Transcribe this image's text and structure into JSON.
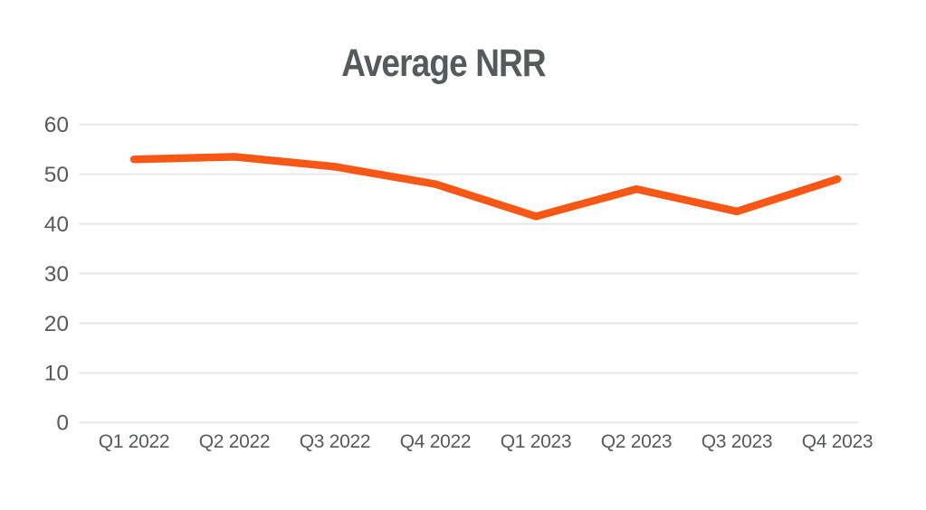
{
  "chart_data": {
    "type": "line",
    "title": "Average NRR",
    "categories": [
      "Q1 2022",
      "Q2 2022",
      "Q3 2022",
      "Q4 2022",
      "Q1 2023",
      "Q2 2023",
      "Q3 2023",
      "Q4 2023"
    ],
    "series": [
      {
        "name": "Average NRR",
        "values": [
          53,
          53.5,
          51.5,
          48,
          41.5,
          47,
          42.5,
          49
        ],
        "color": "#F95716"
      }
    ],
    "xlabel": "",
    "ylabel": "",
    "ylim": [
      0,
      60
    ],
    "yticks": [
      0,
      10,
      20,
      30,
      40,
      50,
      60
    ],
    "grid": true,
    "legend_position": "none",
    "colors": {
      "background": "#FFFFFF",
      "gridline": "#E7E7E7",
      "tick_text": "#58595B",
      "title_text": "#58595B"
    }
  }
}
